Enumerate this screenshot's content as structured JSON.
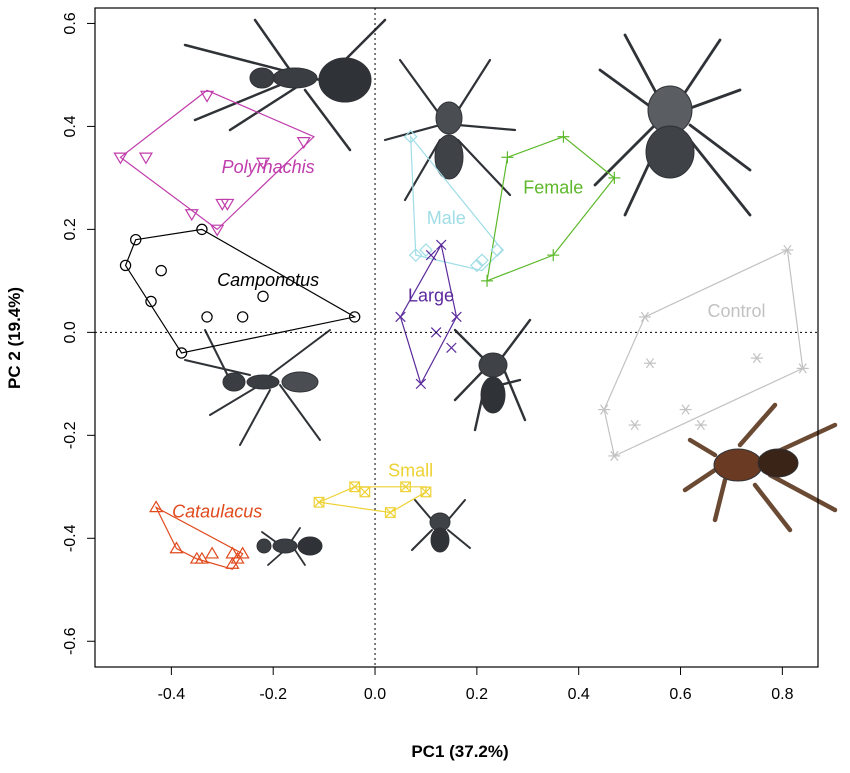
{
  "chart_data": {
    "type": "scatter",
    "xlabel": "PC1 (37.2%)",
    "ylabel": "PC 2 (19.4%)",
    "xlim": [
      -0.55,
      0.87
    ],
    "ylim": [
      -0.65,
      0.63
    ],
    "xticks": [
      "-0.4",
      "-0.2",
      "0.0",
      "0.2",
      "0.4",
      "0.6",
      "0.8"
    ],
    "yticks": [
      "-0.6",
      "-0.4",
      "-0.2",
      "0.0",
      "0.2",
      "0.4",
      "0.6"
    ],
    "reference_lines": {
      "x": 0,
      "y": 0,
      "style": "dotted"
    },
    "grid": false,
    "series": [
      {
        "name": "Polyrhachis",
        "italic": true,
        "marker": "triangle-down",
        "color": "#c03cab",
        "label_pos": [
          -0.21,
          0.31
        ],
        "points": [
          [
            -0.5,
            0.34
          ],
          [
            -0.45,
            0.34
          ],
          [
            -0.33,
            0.46
          ],
          [
            -0.22,
            0.33
          ],
          [
            -0.14,
            0.37
          ],
          [
            -0.36,
            0.23
          ],
          [
            -0.3,
            0.25
          ],
          [
            -0.29,
            0.25
          ],
          [
            -0.31,
            0.2
          ]
        ],
        "hull": [
          [
            -0.5,
            0.34
          ],
          [
            -0.33,
            0.47
          ],
          [
            -0.12,
            0.38
          ],
          [
            -0.31,
            0.2
          ]
        ]
      },
      {
        "name": "Camponotus",
        "italic": true,
        "marker": "circle",
        "color": "#000000",
        "label_pos": [
          -0.21,
          0.09
        ],
        "points": [
          [
            -0.47,
            0.18
          ],
          [
            -0.49,
            0.13
          ],
          [
            -0.42,
            0.12
          ],
          [
            -0.44,
            0.06
          ],
          [
            -0.34,
            0.2
          ],
          [
            -0.33,
            0.03
          ],
          [
            -0.26,
            0.03
          ],
          [
            -0.22,
            0.07
          ],
          [
            -0.38,
            -0.04
          ],
          [
            -0.04,
            0.03
          ]
        ],
        "hull": [
          [
            -0.47,
            0.18
          ],
          [
            -0.34,
            0.2
          ],
          [
            -0.04,
            0.03
          ],
          [
            -0.38,
            -0.04
          ],
          [
            -0.49,
            0.13
          ]
        ]
      },
      {
        "name": "Cataulacus",
        "italic": true,
        "marker": "triangle-up",
        "color": "#e04a1c",
        "label_pos": [
          -0.31,
          -0.36
        ],
        "points": [
          [
            -0.43,
            -0.34
          ],
          [
            -0.39,
            -0.42
          ],
          [
            -0.35,
            -0.44
          ],
          [
            -0.32,
            -0.43
          ],
          [
            -0.28,
            -0.43
          ],
          [
            -0.28,
            -0.45
          ],
          [
            -0.27,
            -0.44
          ],
          [
            -0.34,
            -0.44
          ],
          [
            -0.26,
            -0.43
          ]
        ],
        "hull": [
          [
            -0.43,
            -0.34
          ],
          [
            -0.26,
            -0.43
          ],
          [
            -0.28,
            -0.46
          ],
          [
            -0.35,
            -0.44
          ],
          [
            -0.39,
            -0.42
          ]
        ]
      },
      {
        "name": "Small",
        "italic": false,
        "marker": "square-x",
        "color": "#eed133",
        "label_pos": [
          0.07,
          -0.28
        ],
        "points": [
          [
            -0.11,
            -0.33
          ],
          [
            -0.04,
            -0.3
          ],
          [
            -0.02,
            -0.31
          ],
          [
            0.03,
            -0.35
          ],
          [
            0.06,
            -0.3
          ],
          [
            0.1,
            -0.31
          ]
        ],
        "hull": [
          [
            -0.11,
            -0.33
          ],
          [
            -0.04,
            -0.3
          ],
          [
            0.1,
            -0.3
          ],
          [
            0.1,
            -0.31
          ],
          [
            0.03,
            -0.35
          ]
        ]
      },
      {
        "name": "Male",
        "italic": false,
        "marker": "diamond",
        "color": "#9fdde6",
        "label_pos": [
          0.14,
          0.21
        ],
        "points": [
          [
            0.07,
            0.38
          ],
          [
            0.08,
            0.15
          ],
          [
            0.21,
            0.14
          ],
          [
            0.2,
            0.13
          ],
          [
            0.24,
            0.16
          ],
          [
            0.1,
            0.16
          ]
        ],
        "hull": [
          [
            0.07,
            0.38
          ],
          [
            0.25,
            0.16
          ],
          [
            0.21,
            0.12
          ],
          [
            0.08,
            0.15
          ]
        ]
      },
      {
        "name": "Female",
        "italic": false,
        "marker": "plus",
        "color": "#5db82b",
        "label_pos": [
          0.35,
          0.27
        ],
        "points": [
          [
            0.22,
            0.1
          ],
          [
            0.26,
            0.34
          ],
          [
            0.37,
            0.38
          ],
          [
            0.47,
            0.3
          ],
          [
            0.35,
            0.15
          ]
        ],
        "hull": [
          [
            0.22,
            0.1
          ],
          [
            0.26,
            0.34
          ],
          [
            0.37,
            0.38
          ],
          [
            0.47,
            0.3
          ],
          [
            0.35,
            0.15
          ]
        ]
      },
      {
        "name": "Large",
        "italic": false,
        "marker": "x",
        "color": "#5b2a9c",
        "label_pos": [
          0.11,
          0.06
        ],
        "points": [
          [
            0.05,
            0.03
          ],
          [
            0.09,
            -0.1
          ],
          [
            0.13,
            0.17
          ],
          [
            0.11,
            0.15
          ],
          [
            0.12,
            0.0
          ],
          [
            0.16,
            0.03
          ],
          [
            0.15,
            -0.03
          ]
        ],
        "hull": [
          [
            0.05,
            0.03
          ],
          [
            0.13,
            0.17
          ],
          [
            0.16,
            0.03
          ],
          [
            0.09,
            -0.1
          ]
        ]
      },
      {
        "name": "Control",
        "italic": false,
        "marker": "asterisk",
        "color": "#c2c2c2",
        "label_pos": [
          0.71,
          0.03
        ],
        "points": [
          [
            0.53,
            0.03
          ],
          [
            0.54,
            -0.06
          ],
          [
            0.45,
            -0.15
          ],
          [
            0.47,
            -0.24
          ],
          [
            0.51,
            -0.18
          ],
          [
            0.61,
            -0.15
          ],
          [
            0.75,
            -0.05
          ],
          [
            0.81,
            0.16
          ],
          [
            0.84,
            -0.07
          ],
          [
            0.64,
            -0.18
          ]
        ],
        "hull": [
          [
            0.53,
            0.03
          ],
          [
            0.81,
            0.16
          ],
          [
            0.84,
            -0.07
          ],
          [
            0.47,
            -0.24
          ],
          [
            0.45,
            -0.15
          ]
        ]
      }
    ]
  }
}
